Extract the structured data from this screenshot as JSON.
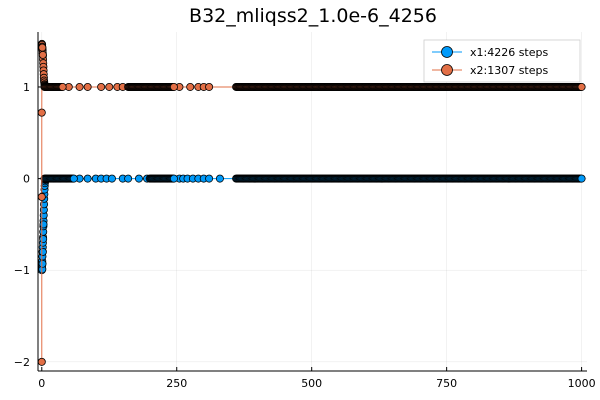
{
  "chart_data": {
    "type": "scatter",
    "title": "B32_mliqss2_1.0e-6_4256",
    "xlabel": "",
    "ylabel": "",
    "xlim": [
      -7,
      1010
    ],
    "ylim": [
      -2.1,
      1.6
    ],
    "x_ticks": [
      0,
      250,
      500,
      750,
      1000
    ],
    "x_tick_labels": [
      "0",
      "250",
      "500",
      "750",
      "1000"
    ],
    "y_ticks": [
      -2,
      -1,
      0,
      1
    ],
    "y_tick_labels": [
      "−2",
      "−1",
      "0",
      "1"
    ],
    "grid": true,
    "legend_position": "top-right",
    "series": [
      {
        "name": "x1:4226 steps",
        "color": "#009AFA",
        "transient": [
          [
            0,
            -1.0
          ],
          [
            0.3,
            -0.98
          ],
          [
            0.6,
            -0.95
          ],
          [
            0.9,
            -0.9
          ],
          [
            1.2,
            -0.85
          ],
          [
            1.5,
            -0.8
          ],
          [
            1.8,
            -0.75
          ],
          [
            2.1,
            -0.7
          ],
          [
            2.4,
            -0.64
          ],
          [
            2.7,
            -0.58
          ],
          [
            3.0,
            -0.52
          ],
          [
            3.3,
            -0.46
          ],
          [
            3.6,
            -0.4
          ],
          [
            3.9,
            -0.34
          ],
          [
            4.2,
            -0.28
          ],
          [
            4.5,
            -0.22
          ],
          [
            4.8,
            -0.17
          ],
          [
            5.1,
            -0.12
          ],
          [
            5.4,
            -0.08
          ],
          [
            5.7,
            -0.05
          ],
          [
            6.0,
            -0.03
          ],
          [
            6.5,
            -0.015
          ],
          [
            7.0,
            -0.007
          ],
          [
            8.0,
            0.0
          ],
          [
            1.0,
            -0.99
          ],
          [
            1.4,
            -0.93
          ],
          [
            2.0,
            -0.8
          ],
          [
            2.6,
            -0.66
          ],
          [
            3.2,
            -0.5
          ]
        ],
        "steady_value": 0.0,
        "dense_segments": [
          [
            5,
            60
          ],
          [
            200,
            245
          ],
          [
            360,
            1000
          ]
        ],
        "sparse_x": [
          70,
          85,
          100,
          110,
          120,
          130,
          150,
          160,
          180,
          195,
          255,
          262,
          270,
          280,
          290,
          300,
          310,
          330
        ]
      },
      {
        "name": "x2:1307 steps",
        "color": "#E26F46",
        "transient": [
          [
            0,
            -2.0
          ],
          [
            0,
            -0.2
          ],
          [
            0,
            0.72
          ],
          [
            0.3,
            1.47
          ],
          [
            0.6,
            1.46
          ],
          [
            0.9,
            1.44
          ],
          [
            1.2,
            1.42
          ],
          [
            1.5,
            1.4
          ],
          [
            1.8,
            1.37
          ],
          [
            2.1,
            1.34
          ],
          [
            2.4,
            1.3
          ],
          [
            2.7,
            1.26
          ],
          [
            3.0,
            1.22
          ],
          [
            3.3,
            1.18
          ],
          [
            3.6,
            1.14
          ],
          [
            3.9,
            1.1
          ],
          [
            4.2,
            1.07
          ],
          [
            4.5,
            1.05
          ],
          [
            5.0,
            1.03
          ],
          [
            5.5,
            1.02
          ],
          [
            6.0,
            1.01
          ],
          [
            7.0,
            1.005
          ],
          [
            8.0,
            1.0
          ],
          [
            1.0,
            1.43
          ],
          [
            2.0,
            1.35
          ]
        ],
        "steady_value": 1.0,
        "dense_segments": [
          [
            5,
            40
          ],
          [
            160,
            245
          ],
          [
            360,
            1000
          ]
        ],
        "sparse_x": [
          50,
          70,
          85,
          110,
          125,
          140,
          150,
          255,
          275,
          290,
          300,
          310
        ]
      }
    ]
  }
}
